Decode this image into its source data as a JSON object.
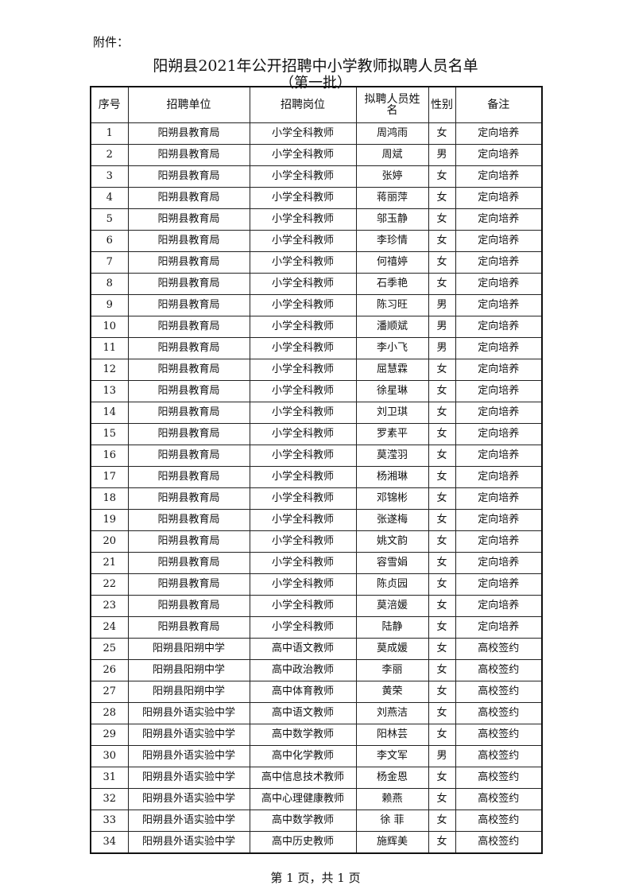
{
  "attachment_label": "附件：",
  "title": "阳朔县2021年公开招聘中小学教师拟聘人员名单",
  "subtitle": "（第一批）",
  "table": {
    "headers": [
      "序号",
      "招聘单位",
      "招聘岗位",
      "拟聘人员姓名",
      "性别",
      "备注"
    ],
    "rows": [
      [
        "1",
        "阳朔县教育局",
        "小学全科教师",
        "周鸿雨",
        "女",
        "定向培养"
      ],
      [
        "2",
        "阳朔县教育局",
        "小学全科教师",
        "周斌",
        "男",
        "定向培养"
      ],
      [
        "3",
        "阳朔县教育局",
        "小学全科教师",
        "张婷",
        "女",
        "定向培养"
      ],
      [
        "4",
        "阳朔县教育局",
        "小学全科教师",
        "蒋丽萍",
        "女",
        "定向培养"
      ],
      [
        "5",
        "阳朔县教育局",
        "小学全科教师",
        "邬玉静",
        "女",
        "定向培养"
      ],
      [
        "6",
        "阳朔县教育局",
        "小学全科教师",
        "李珍情",
        "女",
        "定向培养"
      ],
      [
        "7",
        "阳朔县教育局",
        "小学全科教师",
        "何禧婷",
        "女",
        "定向培养"
      ],
      [
        "8",
        "阳朔县教育局",
        "小学全科教师",
        "石季艳",
        "女",
        "定向培养"
      ],
      [
        "9",
        "阳朔县教育局",
        "小学全科教师",
        "陈习旺",
        "男",
        "定向培养"
      ],
      [
        "10",
        "阳朔县教育局",
        "小学全科教师",
        "潘顺斌",
        "男",
        "定向培养"
      ],
      [
        "11",
        "阳朔县教育局",
        "小学全科教师",
        "李小飞",
        "男",
        "定向培养"
      ],
      [
        "12",
        "阳朔县教育局",
        "小学全科教师",
        "屈慧霖",
        "女",
        "定向培养"
      ],
      [
        "13",
        "阳朔县教育局",
        "小学全科教师",
        "徐星琳",
        "女",
        "定向培养"
      ],
      [
        "14",
        "阳朔县教育局",
        "小学全科教师",
        "刘卫琪",
        "女",
        "定向培养"
      ],
      [
        "15",
        "阳朔县教育局",
        "小学全科教师",
        "罗素平",
        "女",
        "定向培养"
      ],
      [
        "16",
        "阳朔县教育局",
        "小学全科教师",
        "莫滢羽",
        "女",
        "定向培养"
      ],
      [
        "17",
        "阳朔县教育局",
        "小学全科教师",
        "杨湘琳",
        "女",
        "定向培养"
      ],
      [
        "18",
        "阳朔县教育局",
        "小学全科教师",
        "邓锦彬",
        "女",
        "定向培养"
      ],
      [
        "19",
        "阳朔县教育局",
        "小学全科教师",
        "张遂梅",
        "女",
        "定向培养"
      ],
      [
        "20",
        "阳朔县教育局",
        "小学全科教师",
        "姚文韵",
        "女",
        "定向培养"
      ],
      [
        "21",
        "阳朔县教育局",
        "小学全科教师",
        "容雪娟",
        "女",
        "定向培养"
      ],
      [
        "22",
        "阳朔县教育局",
        "小学全科教师",
        "陈贞园",
        "女",
        "定向培养"
      ],
      [
        "23",
        "阳朔县教育局",
        "小学全科教师",
        "莫涪媛",
        "女",
        "定向培养"
      ],
      [
        "24",
        "阳朔县教育局",
        "小学全科教师",
        "陆静",
        "女",
        "定向培养"
      ],
      [
        "25",
        "阳朔县阳朔中学",
        "高中语文教师",
        "莫成媛",
        "女",
        "高校签约"
      ],
      [
        "26",
        "阳朔县阳朔中学",
        "高中政治教师",
        "李丽",
        "女",
        "高校签约"
      ],
      [
        "27",
        "阳朔县阳朔中学",
        "高中体育教师",
        "黄荣",
        "女",
        "高校签约"
      ],
      [
        "28",
        "阳朔县外语实验中学",
        "高中语文教师",
        "刘燕洁",
        "女",
        "高校签约"
      ],
      [
        "29",
        "阳朔县外语实验中学",
        "高中数学教师",
        "阳林芸",
        "女",
        "高校签约"
      ],
      [
        "30",
        "阳朔县外语实验中学",
        "高中化学教师",
        "李文军",
        "男",
        "高校签约"
      ],
      [
        "31",
        "阳朔县外语实验中学",
        "高中信息技术教师",
        "杨金恩",
        "女",
        "高校签约"
      ],
      [
        "32",
        "阳朔县外语实验中学",
        "高中心理健康教师",
        "赖燕",
        "女",
        "高校签约"
      ],
      [
        "33",
        "阳朔县外语实验中学",
        "高中数学教师",
        "徐 菲",
        "女",
        "高校签约"
      ],
      [
        "34",
        "阳朔县外语实验中学",
        "高中历史教师",
        "施辉美",
        "女",
        "高校签约"
      ]
    ]
  },
  "footer": "第 1 页，共 1 页"
}
